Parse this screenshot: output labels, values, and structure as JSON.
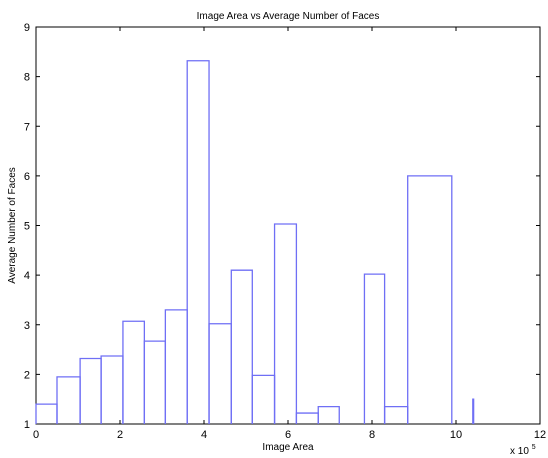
{
  "chart_data": {
    "type": "line",
    "step": true,
    "title": "Image Area vs Average Number of Faces",
    "xlabel": "Image Area",
    "ylabel": "Average Number of Faces",
    "x_multiplier_label": "x 10",
    "x_multiplier_exponent": "5",
    "xlim": [
      0,
      12
    ],
    "ylim": [
      1,
      9
    ],
    "xticks": [
      "0",
      "2",
      "4",
      "6",
      "8",
      "10",
      "12"
    ],
    "yticks": [
      "1",
      "2",
      "3",
      "4",
      "5",
      "6",
      "7",
      "8",
      "9"
    ],
    "grid": false,
    "series": [
      {
        "color": "#6f6ff5",
        "bins": [
          {
            "x0": 0.0,
            "x1": 0.5,
            "y": 1.4
          },
          {
            "x0": 0.5,
            "x1": 1.05,
            "y": 1.95
          },
          {
            "x0": 1.05,
            "x1": 1.55,
            "y": 2.32
          },
          {
            "x0": 1.55,
            "x1": 2.07,
            "y": 2.37
          },
          {
            "x0": 2.07,
            "x1": 2.58,
            "y": 3.07
          },
          {
            "x0": 2.58,
            "x1": 3.08,
            "y": 2.67
          },
          {
            "x0": 3.08,
            "x1": 3.6,
            "y": 3.3
          },
          {
            "x0": 3.6,
            "x1": 4.12,
            "y": 8.32
          },
          {
            "x0": 4.12,
            "x1": 4.65,
            "y": 3.02
          },
          {
            "x0": 4.65,
            "x1": 5.15,
            "y": 4.1
          },
          {
            "x0": 5.15,
            "x1": 5.68,
            "y": 1.98
          },
          {
            "x0": 5.68,
            "x1": 6.2,
            "y": 5.03
          },
          {
            "x0": 6.2,
            "x1": 6.72,
            "y": 1.22
          },
          {
            "x0": 6.72,
            "x1": 7.22,
            "y": 1.35
          },
          {
            "x0": 7.82,
            "x1": 8.3,
            "y": 4.02
          },
          {
            "x0": 8.3,
            "x1": 8.85,
            "y": 1.35
          },
          {
            "x0": 8.85,
            "x1": 9.9,
            "y": 6.0
          },
          {
            "x0": 10.4,
            "x1": 10.42,
            "y": 1.5
          }
        ]
      }
    ]
  }
}
